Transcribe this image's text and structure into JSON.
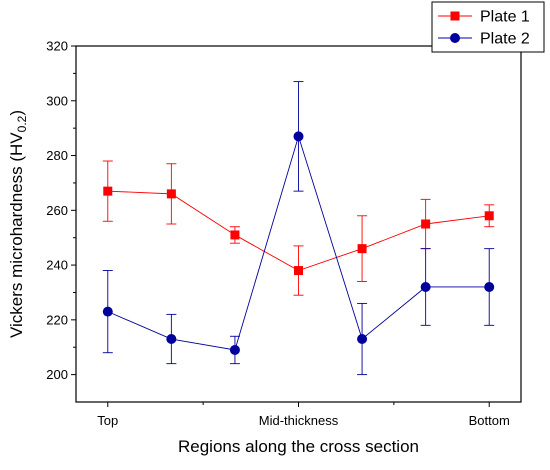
{
  "chart_data": {
    "type": "line",
    "xlabel": "Regions along the cross section",
    "ylabel_main": "Vickers microhardness (HV",
    "ylabel_sub": "0.2",
    "ylabel_close": ")",
    "x_tick_labels": [
      {
        "x": 1,
        "label": "Top"
      },
      {
        "x": 4,
        "label": "Mid-thickness"
      },
      {
        "x": 7,
        "label": "Bottom"
      }
    ],
    "xlim": [
      0.5,
      7.5
    ],
    "ylim": [
      190,
      320
    ],
    "y_ticks": [
      200,
      220,
      240,
      260,
      280,
      300,
      320
    ],
    "legend_position": "top-right",
    "series": [
      {
        "name": "Plate 1",
        "color": "#ff0000",
        "marker": "square",
        "x": [
          1,
          2,
          3,
          4,
          5,
          6,
          7
        ],
        "y": [
          267,
          266,
          251,
          238,
          246,
          255,
          258
        ],
        "error": [
          11,
          11,
          3,
          9,
          12,
          9,
          4
        ]
      },
      {
        "name": "Plate 2",
        "color": "#00009c",
        "marker": "circle",
        "x": [
          1,
          2,
          3,
          4,
          5,
          6,
          7
        ],
        "y": [
          223,
          213,
          209,
          287,
          213,
          232,
          232
        ],
        "error": [
          15,
          9,
          5,
          20,
          13,
          14,
          14
        ]
      }
    ]
  }
}
